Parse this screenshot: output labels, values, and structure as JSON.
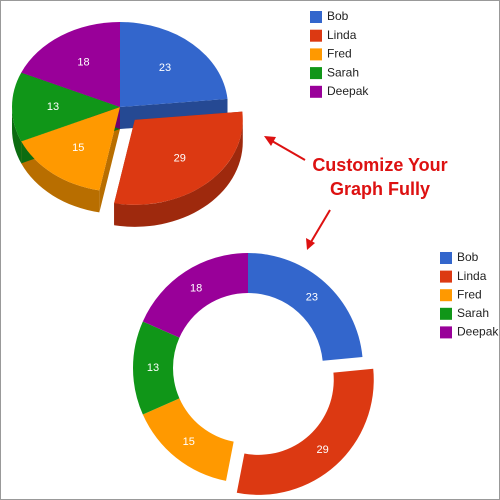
{
  "chart_data": [
    {
      "type": "pie3d",
      "categories": [
        "Bob",
        "Linda",
        "Fred",
        "Sarah",
        "Deepak"
      ],
      "values": [
        23,
        29,
        15,
        13,
        18
      ],
      "colors": [
        "#3366cc",
        "#dc3912",
        "#ff9900",
        "#109618",
        "#990099"
      ],
      "exploded": [
        1
      ]
    },
    {
      "type": "donut",
      "categories": [
        "Bob",
        "Linda",
        "Fred",
        "Sarah",
        "Deepak"
      ],
      "values": [
        23,
        29,
        15,
        13,
        18
      ],
      "colors": [
        "#3366cc",
        "#dc3912",
        "#ff9900",
        "#109618",
        "#990099"
      ],
      "exploded": [
        1
      ]
    }
  ],
  "annotation": [
    "Customize Your",
    "Graph Fully"
  ]
}
